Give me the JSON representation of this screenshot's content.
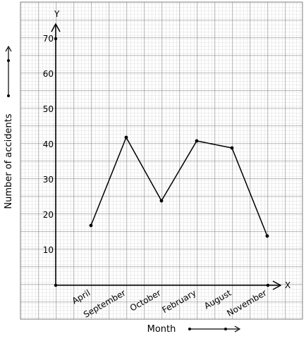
{
  "chart_data": {
    "type": "line",
    "categories": [
      "April",
      "September",
      "October",
      "February",
      "August",
      "November"
    ],
    "values": [
      17,
      42,
      24,
      41,
      39,
      14
    ],
    "ylim": [
      0,
      70
    ],
    "yticks": [
      10,
      20,
      30,
      40,
      50,
      60,
      70
    ],
    "xlabel": "Month",
    "ylabel": "Number of accidents",
    "x_axis_letter": "X",
    "y_axis_letter": "Y",
    "grid": true
  }
}
